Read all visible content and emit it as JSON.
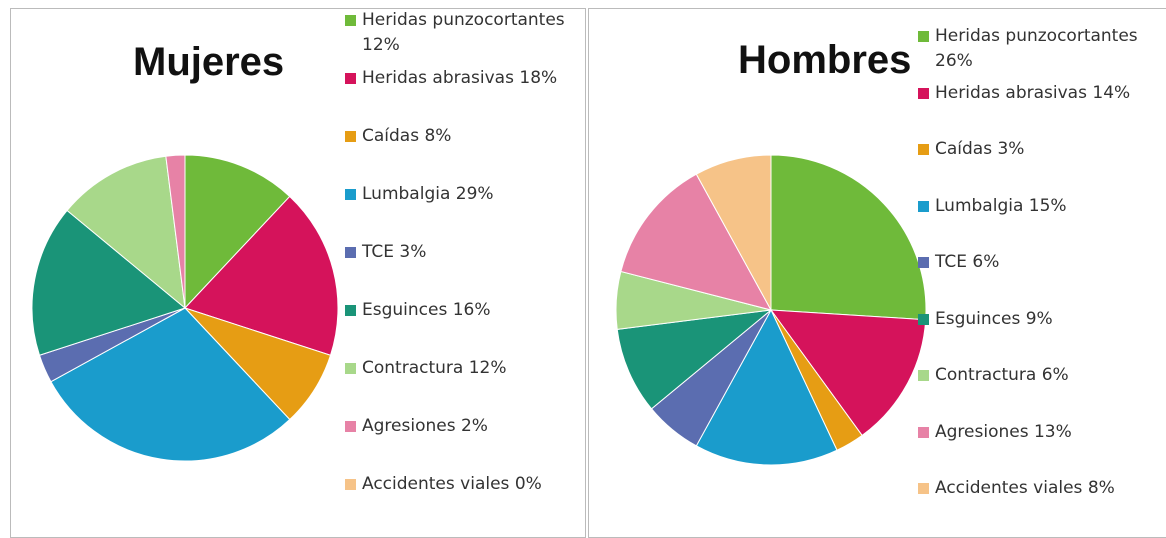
{
  "chart_data": [
    {
      "type": "pie",
      "title": "Mujeres",
      "categories": [
        "Heridas punzocortantes",
        "Heridas abrasivas",
        "Caídas",
        "Lumbalgia",
        "TCE",
        "Esguinces",
        "Contractura",
        "Agresiones",
        "Accidentes viales"
      ],
      "values": [
        12,
        18,
        8,
        29,
        3,
        16,
        12,
        2,
        0
      ],
      "value_labels": [
        "12%",
        "18%",
        "8%",
        "29%",
        "3%",
        "16%",
        "12%",
        "2%",
        "0%"
      ],
      "colors": [
        "#6fba3a",
        "#d5135b",
        "#e69d14",
        "#1a9ccc",
        "#5b6db0",
        "#1a9478",
        "#a8d88a",
        "#e782a6",
        "#f6c388"
      ]
    },
    {
      "type": "pie",
      "title": "Hombres",
      "categories": [
        "Heridas punzocortantes",
        "Heridas abrasivas",
        "Caídas",
        "Lumbalgia",
        "TCE",
        "Esguinces",
        "Contractura",
        "Agresiones",
        "Accidentes viales"
      ],
      "values": [
        26,
        14,
        3,
        15,
        6,
        9,
        6,
        13,
        8
      ],
      "value_labels": [
        "26%",
        "14%",
        "3%",
        "15%",
        "6%",
        "9%",
        "6%",
        "13%",
        "8%"
      ],
      "colors": [
        "#6fba3a",
        "#d5135b",
        "#e69d14",
        "#1a9ccc",
        "#5b6db0",
        "#1a9478",
        "#a8d88a",
        "#e782a6",
        "#f6c388"
      ]
    }
  ]
}
